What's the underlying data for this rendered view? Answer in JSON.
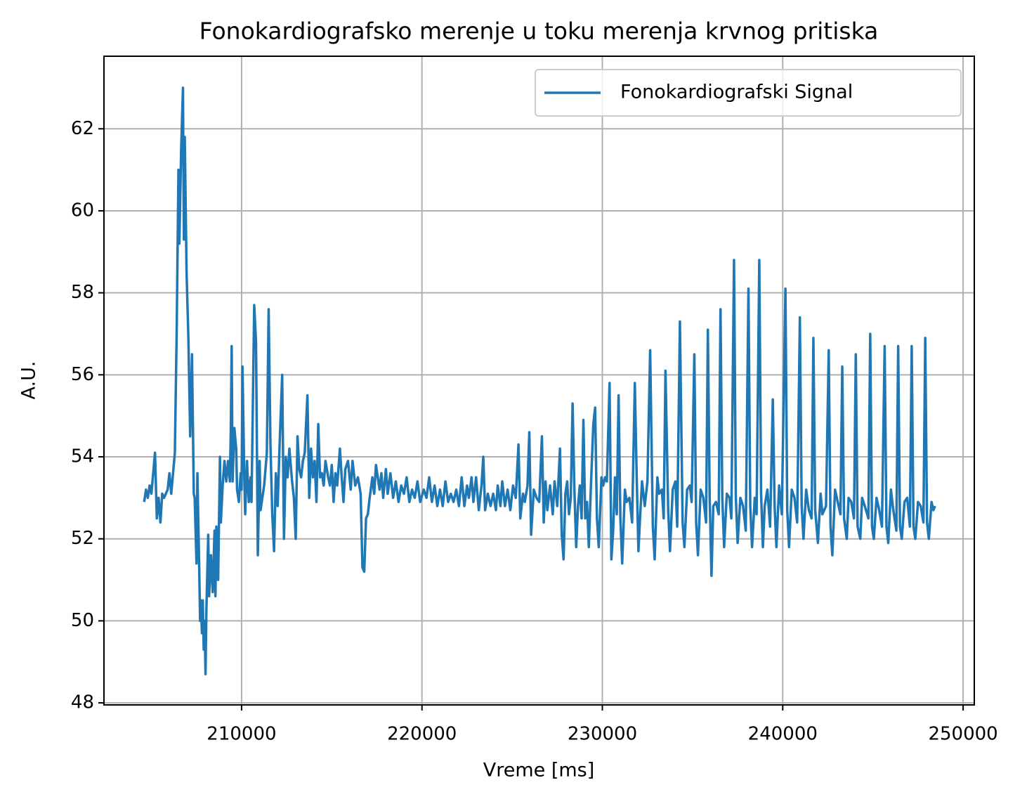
{
  "chart_data": {
    "type": "line",
    "title": "Fonokardiografsko merenje u toku merenja krvnog pritiska",
    "xlabel": "Vreme [ms]",
    "ylabel": "A.U.",
    "x": [
      204600,
      204700,
      204800,
      204900,
      205000,
      205100,
      205200,
      205300,
      205400,
      205500,
      205600,
      205700,
      205900,
      206000,
      206100,
      206200,
      206300,
      206400,
      206500,
      206550,
      206650,
      206750,
      206800,
      206850,
      206950,
      207050,
      207150,
      207250,
      207350,
      207400,
      207500,
      207550,
      207650,
      207700,
      207750,
      207800,
      207850,
      207900,
      207950,
      208000,
      208050,
      208150,
      208200,
      208300,
      208400,
      208500,
      208550,
      208600,
      208700,
      208800,
      208850,
      208950,
      209050,
      209150,
      209250,
      209350,
      209400,
      209450,
      209500,
      209600,
      209700,
      209750,
      209850,
      209950,
      210000,
      210050,
      210150,
      210200,
      210300,
      210400,
      210500,
      210550,
      210700,
      210800,
      210900,
      211000,
      211050,
      211150,
      211250,
      211400,
      211500,
      211600,
      211700,
      211800,
      211900,
      212000,
      212100,
      212250,
      212350,
      212450,
      212550,
      212650,
      212800,
      212900,
      213000,
      213100,
      213200,
      213300,
      213400,
      213500,
      213650,
      213750,
      213850,
      213950,
      214050,
      214150,
      214250,
      214350,
      214450,
      214550,
      214650,
      214800,
      214900,
      215000,
      215100,
      215200,
      215300,
      215450,
      215550,
      215650,
      215750,
      215900,
      216050,
      216150,
      216300,
      216450,
      216600,
      216700,
      216800,
      216900,
      217000,
      217100,
      217250,
      217350,
      217450,
      217550,
      217650,
      217750,
      217850,
      218000,
      218100,
      218250,
      218400,
      218550,
      218700,
      218850,
      219000,
      219150,
      219300,
      219450,
      219600,
      219750,
      219900,
      220100,
      220250,
      220400,
      220550,
      220700,
      220850,
      221000,
      221150,
      221300,
      221450,
      221600,
      221750,
      221900,
      222050,
      222200,
      222350,
      222500,
      222600,
      222750,
      222850,
      223000,
      223150,
      223300,
      223400,
      223500,
      223650,
      223800,
      223950,
      224100,
      224200,
      224350,
      224450,
      224600,
      224750,
      224900,
      225050,
      225200,
      225350,
      225450,
      225600,
      225700,
      225850,
      225950,
      226050,
      226200,
      226350,
      226500,
      226650,
      226750,
      226850,
      226950,
      227100,
      227250,
      227350,
      227500,
      227650,
      227750,
      227850,
      227950,
      228050,
      228150,
      228250,
      228350,
      228450,
      228550,
      228650,
      228750,
      228850,
      228950,
      229050,
      229150,
      229250,
      229350,
      229500,
      229600,
      229700,
      229800,
      229950,
      230050,
      230150,
      230250,
      230400,
      230500,
      230600,
      230700,
      230800,
      230900,
      231000,
      231100,
      231250,
      231350,
      231500,
      231650,
      231800,
      231900,
      232000,
      232100,
      232200,
      232350,
      232500,
      232650,
      232800,
      232900,
      233050,
      233150,
      233300,
      233400,
      233500,
      233650,
      233750,
      233900,
      234050,
      234150,
      234300,
      234450,
      234550,
      234700,
      234850,
      234950,
      235100,
      235200,
      235300,
      235450,
      235600,
      235750,
      235850,
      235950,
      236050,
      236150,
      236300,
      236450,
      236550,
      236650,
      236750,
      236900,
      237050,
      237150,
      237300,
      237400,
      237500,
      237650,
      237800,
      237950,
      238100,
      238200,
      238300,
      238450,
      238550,
      238700,
      238800,
      238900,
      239000,
      239150,
      239300,
      239450,
      239550,
      239650,
      239800,
      239950,
      240150,
      240250,
      240350,
      240500,
      240650,
      240800,
      240950,
      241050,
      241150,
      241300,
      241450,
      241600,
      241700,
      241800,
      241950,
      242100,
      242200,
      242400,
      242550,
      242650,
      242750,
      242900,
      243050,
      243200,
      243300,
      243400,
      243550,
      243650,
      243800,
      243950,
      244050,
      244150,
      244300,
      244400,
      244550,
      244750,
      244850,
      244950,
      245050,
      245200,
      245350,
      245500,
      245650,
      245750,
      245850,
      246000,
      246100,
      246300,
      246400,
      246500,
      246600,
      246750,
      246900,
      247050,
      247150,
      247250,
      247350,
      247500,
      247650,
      247800,
      247900,
      248000,
      248100,
      248250,
      248350,
      248450
    ],
    "series": [
      {
        "name": "Fonokardiografski Signal",
        "color": "#1f77b4",
        "values": [
          52.9,
          53.2,
          53.0,
          53.3,
          53.1,
          53.6,
          54.1,
          52.5,
          53.0,
          52.4,
          53.1,
          53.0,
          53.2,
          53.6,
          53.1,
          53.6,
          54.1,
          57.0,
          61.0,
          59.2,
          61.5,
          63.0,
          59.3,
          61.8,
          58.5,
          56.9,
          54.5,
          56.5,
          53.1,
          53.0,
          51.4,
          53.6,
          51.3,
          50.0,
          50.5,
          49.7,
          50.5,
          49.3,
          50.0,
          48.7,
          50.3,
          52.1,
          50.6,
          51.6,
          50.7,
          52.2,
          50.6,
          52.3,
          51.0,
          54.0,
          52.4,
          53.3,
          53.9,
          53.4,
          53.9,
          53.4,
          54.6,
          56.7,
          53.4,
          54.7,
          54.2,
          53.2,
          52.9,
          53.6,
          53.2,
          56.2,
          53.5,
          52.6,
          53.9,
          52.9,
          53.5,
          52.9,
          57.7,
          56.8,
          51.6,
          53.9,
          52.7,
          53.0,
          53.3,
          54.1,
          57.6,
          54.3,
          52.6,
          51.7,
          53.6,
          52.8,
          54.2,
          56.0,
          52.0,
          54.0,
          53.5,
          54.2,
          53.4,
          53.0,
          52.0,
          54.5,
          53.7,
          53.5,
          53.9,
          54.1,
          55.5,
          53.0,
          54.2,
          53.5,
          53.9,
          52.9,
          54.8,
          53.5,
          53.6,
          53.3,
          53.9,
          53.5,
          53.3,
          53.8,
          52.9,
          53.6,
          53.3,
          54.2,
          53.5,
          52.9,
          53.7,
          53.9,
          53.2,
          53.9,
          53.3,
          53.5,
          53.1,
          51.3,
          51.2,
          52.5,
          52.6,
          53.0,
          53.5,
          53.1,
          53.8,
          53.5,
          53.2,
          53.6,
          53.0,
          53.7,
          53.1,
          53.6,
          53.0,
          53.4,
          52.9,
          53.3,
          53.1,
          53.5,
          52.9,
          53.2,
          53.0,
          53.4,
          52.9,
          53.2,
          53.0,
          53.5,
          52.9,
          53.3,
          52.8,
          53.2,
          52.8,
          53.4,
          52.9,
          53.1,
          52.9,
          53.2,
          52.8,
          53.5,
          52.8,
          53.3,
          53.0,
          53.5,
          52.9,
          53.5,
          52.7,
          53.3,
          54.0,
          52.7,
          53.1,
          52.8,
          53.1,
          52.7,
          53.3,
          52.8,
          53.4,
          52.8,
          53.2,
          52.7,
          53.3,
          53.0,
          54.3,
          52.5,
          53.1,
          52.9,
          53.3,
          54.6,
          52.1,
          53.2,
          53.0,
          52.9,
          54.5,
          52.4,
          53.4,
          52.7,
          53.3,
          52.6,
          53.4,
          52.8,
          54.2,
          52.1,
          51.5,
          53.1,
          53.4,
          52.6,
          53.0,
          55.3,
          53.2,
          51.8,
          52.8,
          53.3,
          52.5,
          54.9,
          52.5,
          52.9,
          51.8,
          53.1,
          54.8,
          55.2,
          52.5,
          51.8,
          53.5,
          53.3,
          53.5,
          53.4,
          55.8,
          51.5,
          52.2,
          53.5,
          52.6,
          55.5,
          52.5,
          51.4,
          53.2,
          52.9,
          53.0,
          52.4,
          55.8,
          53.6,
          51.7,
          52.6,
          53.4,
          52.8,
          53.4,
          56.6,
          52.3,
          51.5,
          53.5,
          53.1,
          53.2,
          52.5,
          56.1,
          52.7,
          51.7,
          53.2,
          53.4,
          52.3,
          57.3,
          52.4,
          51.8,
          53.2,
          53.3,
          52.9,
          56.5,
          52.4,
          51.6,
          53.2,
          53.0,
          52.4,
          57.1,
          53.0,
          51.1,
          52.8,
          52.9,
          52.6,
          57.6,
          53.0,
          51.8,
          53.1,
          53.0,
          52.5,
          58.8,
          53.0,
          51.9,
          53.0,
          52.8,
          52.2,
          58.1,
          52.8,
          51.8,
          53.0,
          52.6,
          58.8,
          53.1,
          51.8,
          52.8,
          53.2,
          52.3,
          55.4,
          52.8,
          51.8,
          53.3,
          52.6,
          58.1,
          52.7,
          51.8,
          53.2,
          53.0,
          52.4,
          57.4,
          52.8,
          52.0,
          53.2,
          52.7,
          52.5,
          56.9,
          52.7,
          51.9,
          53.1,
          52.6,
          52.8,
          56.6,
          52.3,
          51.6,
          53.2,
          52.9,
          52.6,
          56.2,
          52.5,
          52.0,
          53.0,
          52.9,
          52.5,
          56.5,
          52.3,
          52.0,
          53.0,
          52.8,
          52.5,
          57.0,
          52.3,
          52.0,
          53.0,
          52.7,
          52.3,
          56.7,
          52.3,
          51.9,
          53.2,
          52.8,
          52.2,
          56.7,
          52.3,
          52.0,
          52.9,
          53.0,
          52.3,
          56.7,
          52.3,
          52.0,
          52.9,
          52.8,
          52.4,
          56.9,
          52.4,
          52.0,
          52.9,
          52.7,
          52.8
        ]
      }
    ],
    "xlim": [
      202370,
      250620
    ],
    "ylim": [
      47.95,
      63.77
    ],
    "xticks": [
      210000,
      220000,
      230000,
      240000,
      250000
    ],
    "yticks": [
      48,
      50,
      52,
      54,
      56,
      58,
      60,
      62
    ],
    "grid": true,
    "legend": "upper right"
  }
}
